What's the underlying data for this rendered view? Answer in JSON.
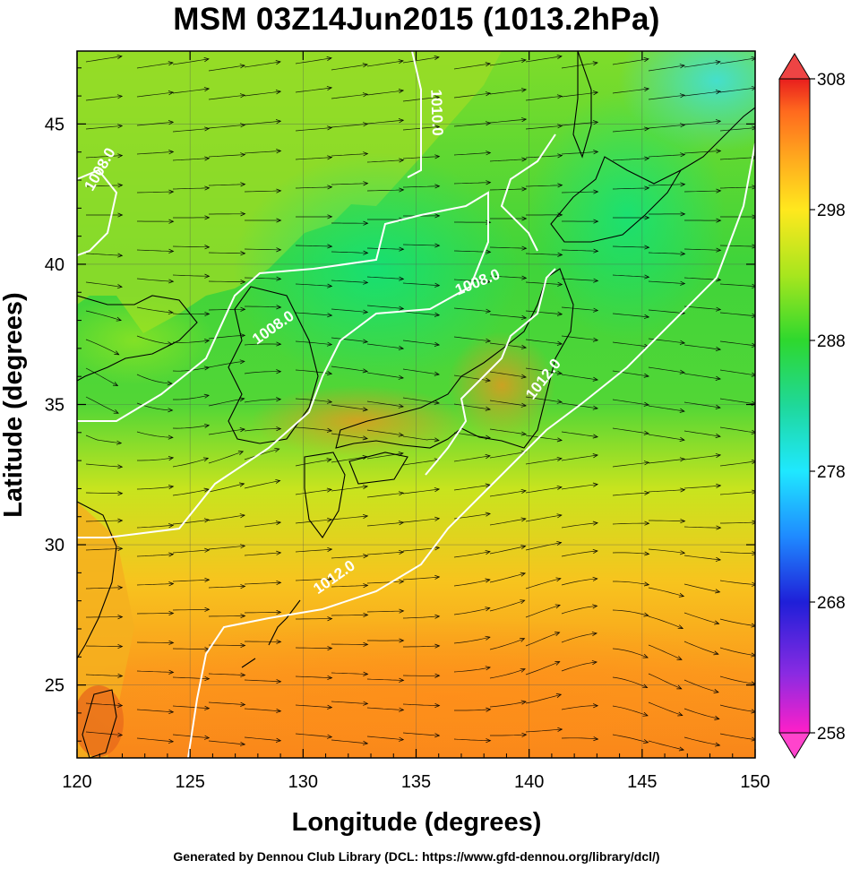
{
  "title": "MSM 03Z14Jun2015 (1013.2hPa)",
  "footer": "Generated by Dennou Club Library (DCL: https://www.gfd-dennou.org/library/dcl/)",
  "chart_data": {
    "type": "heatmap",
    "title": "MSM 03Z14Jun2015 (1013.2hPa)",
    "xlabel": "Longitude (degrees)",
    "ylabel": "Latitude  (degrees)",
    "xlim": [
      120,
      150
    ],
    "ylim": [
      22.4,
      47.6
    ],
    "x_ticks": [
      120,
      125,
      130,
      135,
      140,
      145,
      150
    ],
    "y_ticks": [
      25,
      30,
      35,
      40,
      45
    ],
    "grid": true,
    "colorbar": {
      "min": 258,
      "max": 308,
      "ticks": [
        258,
        268,
        278,
        288,
        298,
        308
      ],
      "colors": [
        "#ff1fc8",
        "#8a2be2",
        "#1f1fd8",
        "#1f8aff",
        "#1fe8ff",
        "#1fd89a",
        "#2ed82e",
        "#a8e61e",
        "#ffe81e",
        "#ffa81e",
        "#ff6a1e",
        "#e81e1e"
      ]
    },
    "contours": [
      {
        "label": "1008.0",
        "lon": 128.8,
        "lat": 37.6
      },
      {
        "label": "1008.0",
        "lon": 137.8,
        "lat": 39.2
      },
      {
        "label": "1008.0",
        "lon": 121.2,
        "lat": 43.3
      },
      {
        "label": "1010.0",
        "lon": 135.7,
        "lat": 45.4
      },
      {
        "label": "1012.0",
        "lon": 140.8,
        "lat": 35.8
      },
      {
        "label": "1012.0",
        "lon": 131.5,
        "lat": 28.7
      }
    ]
  }
}
